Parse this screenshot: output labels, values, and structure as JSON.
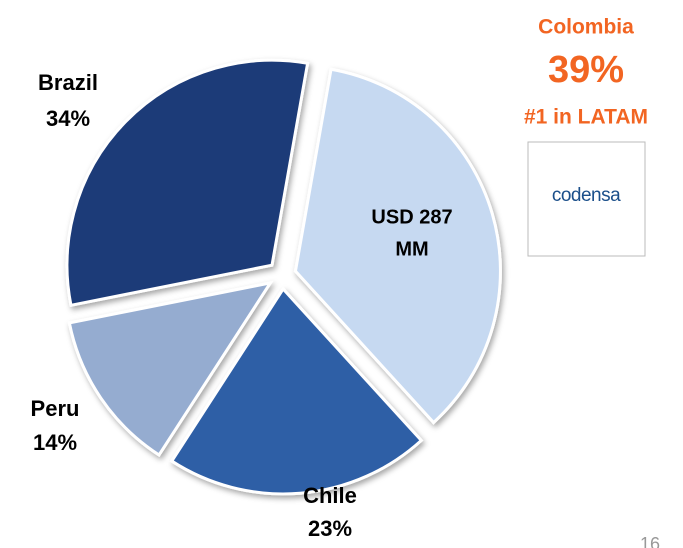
{
  "chart_data": {
    "type": "pie",
    "categories": [
      "Colombia",
      "Chile",
      "Peru",
      "Brazil"
    ],
    "values": [
      39,
      23,
      14,
      34
    ],
    "value_labels": [
      "39%",
      "23%",
      "14%",
      "34%"
    ],
    "colors": [
      "#c6d9f1",
      "#2f5ea6",
      "#95acd0",
      "#1f3b78"
    ],
    "center_label": [
      "USD 287",
      "MM"
    ],
    "annotation": "#1 in LATAM",
    "logo": "codensa",
    "page_number": "16"
  }
}
